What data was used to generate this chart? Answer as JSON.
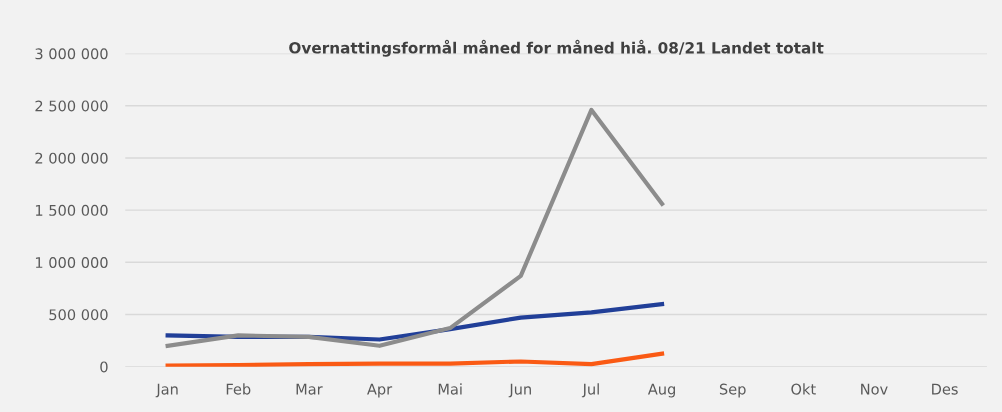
{
  "chart_data": {
    "type": "line",
    "title": "Overnattingsformål måned for måned hiå. 08/21 Landet totalt",
    "categories": [
      "Jan",
      "Feb",
      "Mar",
      "Apr",
      "Mai",
      "Jun",
      "Jul",
      "Aug",
      "Sep",
      "Okt",
      "Nov",
      "Des"
    ],
    "series": [
      {
        "color": "#213f98",
        "values": [
          300000,
          285000,
          285000,
          260000,
          360000,
          470000,
          520000,
          600000,
          null,
          null,
          null,
          null
        ]
      },
      {
        "color": "#8c8c8c",
        "values": [
          200000,
          300000,
          285000,
          200000,
          370000,
          870000,
          2460000,
          1560000,
          null,
          null,
          null,
          null
        ]
      },
      {
        "color": "#fa5a14",
        "values": [
          10000,
          15000,
          25000,
          30000,
          30000,
          50000,
          25000,
          125000,
          null,
          null,
          null,
          null
        ]
      }
    ],
    "ylim": [
      0,
      3000000
    ],
    "yticks": [
      {
        "value": 0,
        "label": "0"
      },
      {
        "value": 500000,
        "label": "500 000"
      },
      {
        "value": 1000000,
        "label": "1 000 000"
      },
      {
        "value": 1500000,
        "label": "1 500 000"
      },
      {
        "value": 2000000,
        "label": "2 000 000"
      },
      {
        "value": 2500000,
        "label": "2 500 000"
      },
      {
        "value": 3000000,
        "label": "3 000 000"
      }
    ],
    "grid": "y",
    "legend": false,
    "marker": "none",
    "line_style": "solid"
  }
}
